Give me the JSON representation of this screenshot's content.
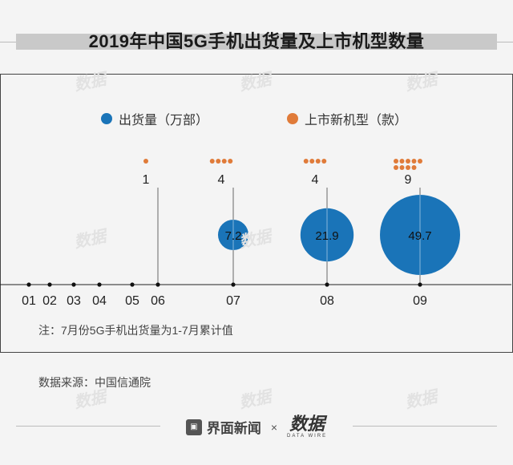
{
  "title": "2019年中国5G手机出货量及上市机型数量",
  "colors": {
    "shipment": "#1a74b8",
    "models": "#e07b39",
    "axis": "#222"
  },
  "chart_data": {
    "type": "scatter",
    "title": "2019年中国5G手机出货量及上市机型数量",
    "legend": [
      {
        "name": "出货量（万部）",
        "color": "#1a74b8"
      },
      {
        "name": "上市新机型（款）",
        "color": "#e07b39"
      }
    ],
    "months": [
      "01",
      "02",
      "03",
      "04",
      "05",
      "06",
      "07",
      "08",
      "09"
    ],
    "series": [
      {
        "name": "出货量（万部）",
        "values": [
          null,
          null,
          null,
          null,
          null,
          null,
          7.2,
          21.9,
          49.7
        ]
      },
      {
        "name": "上市新机型（款）",
        "values": [
          null,
          null,
          null,
          null,
          null,
          1,
          4,
          4,
          9
        ]
      }
    ]
  },
  "note": "注：7月份5G手机出货量为1-7月累计值",
  "source": "数据来源：中国信通院",
  "footer": {
    "brand": "界面新闻",
    "times": "×",
    "logo": "数据",
    "logo_sub": "DATA WIRE"
  },
  "watermark": "数据"
}
